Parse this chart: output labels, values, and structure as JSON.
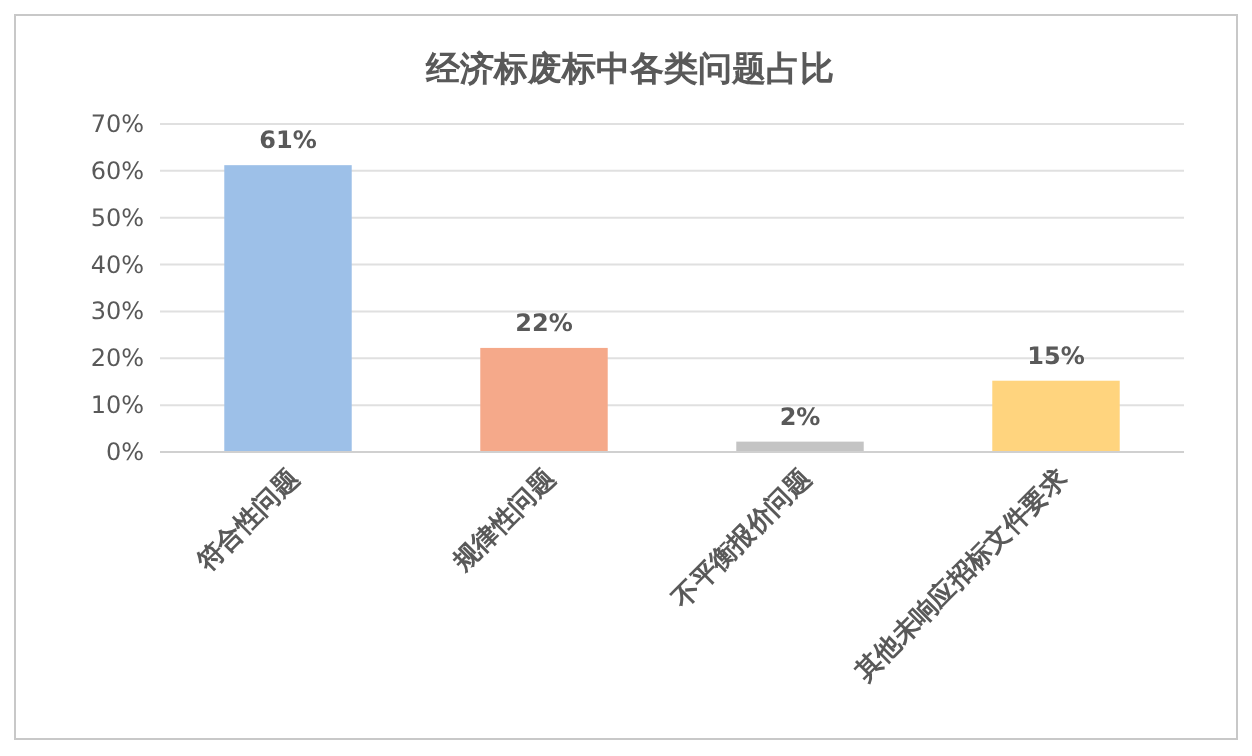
{
  "chart_data": {
    "type": "bar",
    "title": "经济标废标中各类问题占比",
    "categories": [
      "符合性问题",
      "规律性问题",
      "不平衡报价问题",
      "其他未响应招标文件要求"
    ],
    "values": [
      61,
      22,
      2,
      15
    ],
    "colors": [
      "#9dc0e8",
      "#f5a98a",
      "#c4c4c4",
      "#ffd47e"
    ],
    "value_labels": [
      "61%",
      "22%",
      "2%",
      "15%"
    ],
    "ylim": [
      0,
      70
    ],
    "yticks": [
      {
        "value": 0,
        "label": "0%"
      },
      {
        "value": 10,
        "label": "10%"
      },
      {
        "value": 20,
        "label": "20%"
      },
      {
        "value": 30,
        "label": "30%"
      },
      {
        "value": 40,
        "label": "40%"
      },
      {
        "value": 50,
        "label": "50%"
      },
      {
        "value": 60,
        "label": "60%"
      },
      {
        "value": 70,
        "label": "70%"
      }
    ],
    "grid": "y"
  }
}
